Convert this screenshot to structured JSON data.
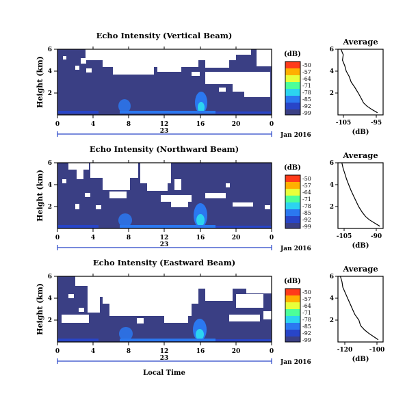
{
  "chart_data": [
    {
      "type": "heatmap",
      "title": "Echo Intensity (Vertical Beam)",
      "ylabel": "Height (km)",
      "x_ticks": [
        "0",
        "4",
        "8",
        "12",
        "16",
        "20",
        "0"
      ],
      "y_ticks": [
        "6",
        "4",
        "2"
      ],
      "xlim": [
        0,
        24
      ],
      "ylim": [
        0,
        6
      ],
      "date_day": "23",
      "date_label": "Jan 2016",
      "colorbar": {
        "unit": "(dB)",
        "ticks": [
          "-50",
          "-57",
          "-64",
          "-71",
          "-78",
          "-85",
          "-92",
          "-99"
        ],
        "colors": [
          "#ff3b1a",
          "#ffb000",
          "#e8ff3a",
          "#4cff9a",
          "#2cd4f0",
          "#2b78f0",
          "#2845c8",
          "#3a3f84"
        ]
      },
      "background_color": "#3a3f84",
      "profile": {
        "title": "Average",
        "xlabel": "(dB)",
        "x_ticks": [
          "-105",
          "-95"
        ],
        "y_ticks": [
          "6",
          "4",
          "2"
        ],
        "xlim": [
          -106,
          -94
        ],
        "ylim": [
          0,
          6
        ],
        "height": [
          0.2,
          0.5,
          0.8,
          1.1,
          1.5,
          2.0,
          2.5,
          3.0,
          3.5,
          4.0,
          4.5,
          5.0,
          5.5,
          6.0
        ],
        "value": [
          -95.5,
          -97.0,
          -98.3,
          -99.2,
          -99.8,
          -100.6,
          -101.5,
          -102.5,
          -103.0,
          -103.8,
          -104.2,
          -104.8,
          -104.6,
          -105.2
        ]
      }
    },
    {
      "type": "heatmap",
      "title": "Echo Intensity (Northward Beam)",
      "ylabel": "Height (km)",
      "x_ticks": [
        "0",
        "4",
        "8",
        "12",
        "16",
        "20",
        "0"
      ],
      "y_ticks": [
        "6",
        "4",
        "2"
      ],
      "xlim": [
        0,
        24
      ],
      "ylim": [
        0,
        6
      ],
      "date_day": "23",
      "date_label": "Jan 2016",
      "colorbar": {
        "unit": "(dB)",
        "ticks": [
          "-50",
          "-57",
          "-64",
          "-71",
          "-78",
          "-85",
          "-92",
          "-99"
        ],
        "colors": [
          "#ff3b1a",
          "#ffb000",
          "#e8ff3a",
          "#4cff9a",
          "#2cd4f0",
          "#2b78f0",
          "#2845c8",
          "#3a3f84"
        ]
      },
      "background_color": "#3a3f84",
      "profile": {
        "title": "Average",
        "xlabel": "(dB)",
        "x_ticks": [
          "-105",
          "-90"
        ],
        "y_ticks": [
          "6",
          "4",
          "2"
        ],
        "xlim": [
          -108,
          -87
        ],
        "ylim": [
          0,
          6
        ],
        "height": [
          0.2,
          0.5,
          0.8,
          1.1,
          1.5,
          2.0,
          2.5,
          3.0,
          3.5,
          4.0,
          4.5,
          5.0,
          5.5,
          6.0
        ],
        "value": [
          -88.5,
          -91.0,
          -93.5,
          -95.2,
          -96.8,
          -98.4,
          -99.6,
          -100.8,
          -102.0,
          -103.0,
          -104.0,
          -104.8,
          -105.6,
          -106.2
        ]
      }
    },
    {
      "type": "heatmap",
      "title": "Echo Intensity (Eastward Beam)",
      "ylabel": "Height (km)",
      "xlabel": "Local Time",
      "x_ticks": [
        "0",
        "4",
        "8",
        "12",
        "16",
        "20",
        "0"
      ],
      "y_ticks": [
        "6",
        "4",
        "2"
      ],
      "xlim": [
        0,
        24
      ],
      "ylim": [
        0,
        6
      ],
      "date_day": "23",
      "date_label": "Jan 2016",
      "colorbar": {
        "unit": "(dB)",
        "ticks": [
          "-50",
          "-57",
          "-64",
          "-71",
          "-78",
          "-85",
          "-92",
          "-99"
        ],
        "colors": [
          "#ff3b1a",
          "#ffb000",
          "#e8ff3a",
          "#4cff9a",
          "#2cd4f0",
          "#2b78f0",
          "#2845c8",
          "#3a3f84"
        ]
      },
      "background_color": "#3a3f84",
      "profile": {
        "title": "Average",
        "xlabel": "(dB)",
        "x_ticks": [
          "-120",
          "-100"
        ],
        "y_ticks": [
          "6",
          "4",
          "2"
        ],
        "xlim": [
          -124,
          -96
        ],
        "ylim": [
          0,
          6
        ],
        "height": [
          0.2,
          0.5,
          0.8,
          1.1,
          1.5,
          2.0,
          2.5,
          3.0,
          3.5,
          4.0,
          4.5,
          5.0,
          5.5,
          6.0
        ],
        "value": [
          -99.0,
          -102.0,
          -105.0,
          -107.5,
          -110.0,
          -111.0,
          -113.5,
          -115.0,
          -116.5,
          -118.0,
          -119.5,
          -121.0,
          -121.5,
          -122.5
        ]
      }
    }
  ]
}
